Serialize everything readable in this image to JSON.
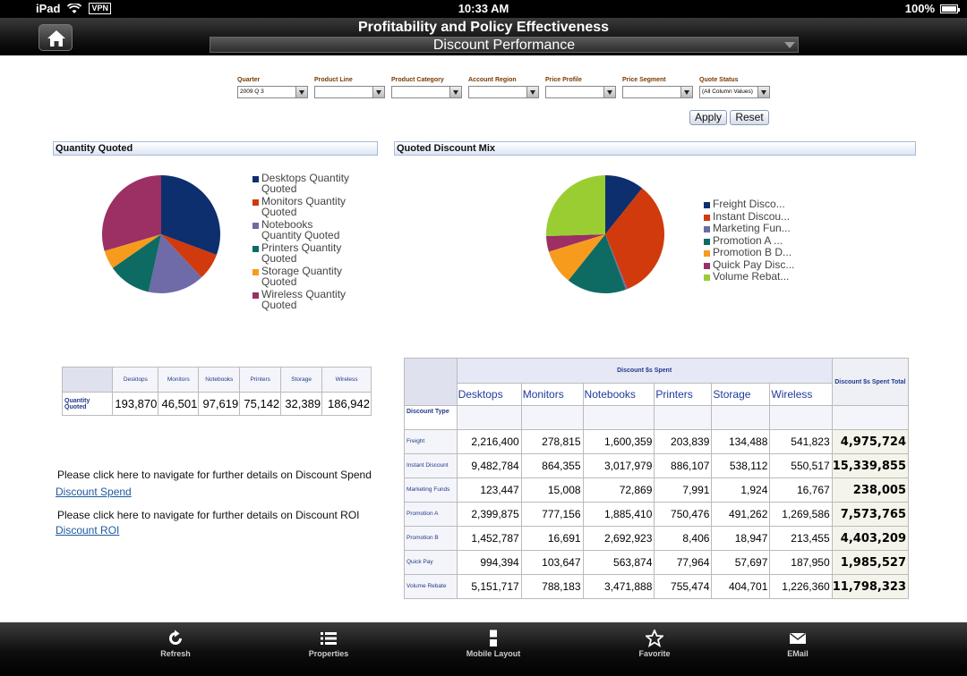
{
  "status": {
    "device": "iPad",
    "vpn": "VPN",
    "time": "10:33 AM",
    "battery": "100%"
  },
  "header": {
    "title": "Profitability and Policy Effectiveness",
    "page": "Discount Performance"
  },
  "filters": [
    {
      "label": "Quarter",
      "value": "2009 Q 3"
    },
    {
      "label": "Product Line",
      "value": ""
    },
    {
      "label": "Product Category",
      "value": ""
    },
    {
      "label": "Account Region",
      "value": ""
    },
    {
      "label": "Price Profile",
      "value": ""
    },
    {
      "label": "Price Segment",
      "value": ""
    },
    {
      "label": "Quote Status",
      "value": "(All Column Values)"
    }
  ],
  "buttons": {
    "apply": "Apply",
    "reset": "Reset"
  },
  "panels": {
    "quantity": "Quantity Quoted",
    "mix": "Quoted Discount Mix"
  },
  "chart_data": [
    {
      "type": "pie",
      "title": "Quantity Quoted",
      "categories": [
        "Desktops Quantity Quoted",
        "Monitors Quantity Quoted",
        "Notebooks Quantity Quoted",
        "Printers Quantity Quoted",
        "Storage Quantity Quoted",
        "Wireless Quantity Quoted"
      ],
      "values": [
        193870,
        46501,
        97619,
        75142,
        32389,
        186942
      ],
      "colors": [
        "#0d2f6e",
        "#d03a0c",
        "#6f6aa8",
        "#0e6b64",
        "#f79b1c",
        "#9c2f63"
      ],
      "legend": "right"
    },
    {
      "type": "pie",
      "title": "Quoted Discount Mix",
      "categories": [
        "Freight Disco...",
        "Instant Discou...",
        "Marketing Fun...",
        "Promotion A ...",
        "Promotion B D...",
        "Quick Pay Disc...",
        "Volume Rebat..."
      ],
      "values": [
        4975724,
        15339855,
        238005,
        7573765,
        4403209,
        1985527,
        11798323
      ],
      "colors": [
        "#0d2f6e",
        "#d03a0c",
        "#6f6aa8",
        "#0e6b64",
        "#f79b1c",
        "#9c2f63",
        "#9acd32"
      ],
      "legend": "right"
    }
  ],
  "qty_table": {
    "headers": [
      "Desktops",
      "Monitors",
      "Notebooks",
      "Printers",
      "Storage",
      "Wireless"
    ],
    "row_label": "Quantity Quoted",
    "values": [
      "193,870",
      "46,501",
      "97,619",
      "75,142",
      "32,389",
      "186,942"
    ]
  },
  "spend_table": {
    "group_header": "Discount $s Spent",
    "total_header": "Discount $s Spent Total",
    "row_header": "Discount Type",
    "columns": [
      "Desktops",
      "Monitors",
      "Notebooks",
      "Printers",
      "Storage",
      "Wireless"
    ],
    "rows": [
      {
        "label": "Freight",
        "values": [
          "2,216,400",
          "278,815",
          "1,600,359",
          "203,839",
          "134,488",
          "541,823"
        ],
        "total": "4,975,724"
      },
      {
        "label": "Instant Discount",
        "values": [
          "9,482,784",
          "864,355",
          "3,017,979",
          "886,107",
          "538,112",
          "550,517"
        ],
        "total": "15,339,855"
      },
      {
        "label": "Marketing Funds",
        "values": [
          "123,447",
          "15,008",
          "72,869",
          "7,991",
          "1,924",
          "16,767"
        ],
        "total": "238,005"
      },
      {
        "label": "Promotion A",
        "values": [
          "2,399,875",
          "777,156",
          "1,885,410",
          "750,476",
          "491,262",
          "1,269,586"
        ],
        "total": "7,573,765"
      },
      {
        "label": "Promotion B",
        "values": [
          "1,452,787",
          "16,691",
          "2,692,923",
          "8,406",
          "18,947",
          "213,455"
        ],
        "total": "4,403,209"
      },
      {
        "label": "Quick Pay",
        "values": [
          "994,394",
          "103,647",
          "563,874",
          "77,964",
          "57,697",
          "187,950"
        ],
        "total": "1,985,527"
      },
      {
        "label": "Volume Rebate",
        "values": [
          "5,151,717",
          "788,183",
          "3,471,888",
          "755,474",
          "404,701",
          "1,226,360"
        ],
        "total": "11,798,323"
      }
    ]
  },
  "links": {
    "spend_text": "Please click here to navigate for further details on Discount Spend",
    "spend_link": "Discount Spend",
    "roi_text": "Please click here to navigate for further details on Discount ROI",
    "roi_link": "Discount ROI"
  },
  "toolbar": {
    "refresh": "Refresh",
    "properties": "Properties",
    "mobile_layout": "Mobile Layout",
    "favorite": "Favorite",
    "email": "EMail"
  }
}
